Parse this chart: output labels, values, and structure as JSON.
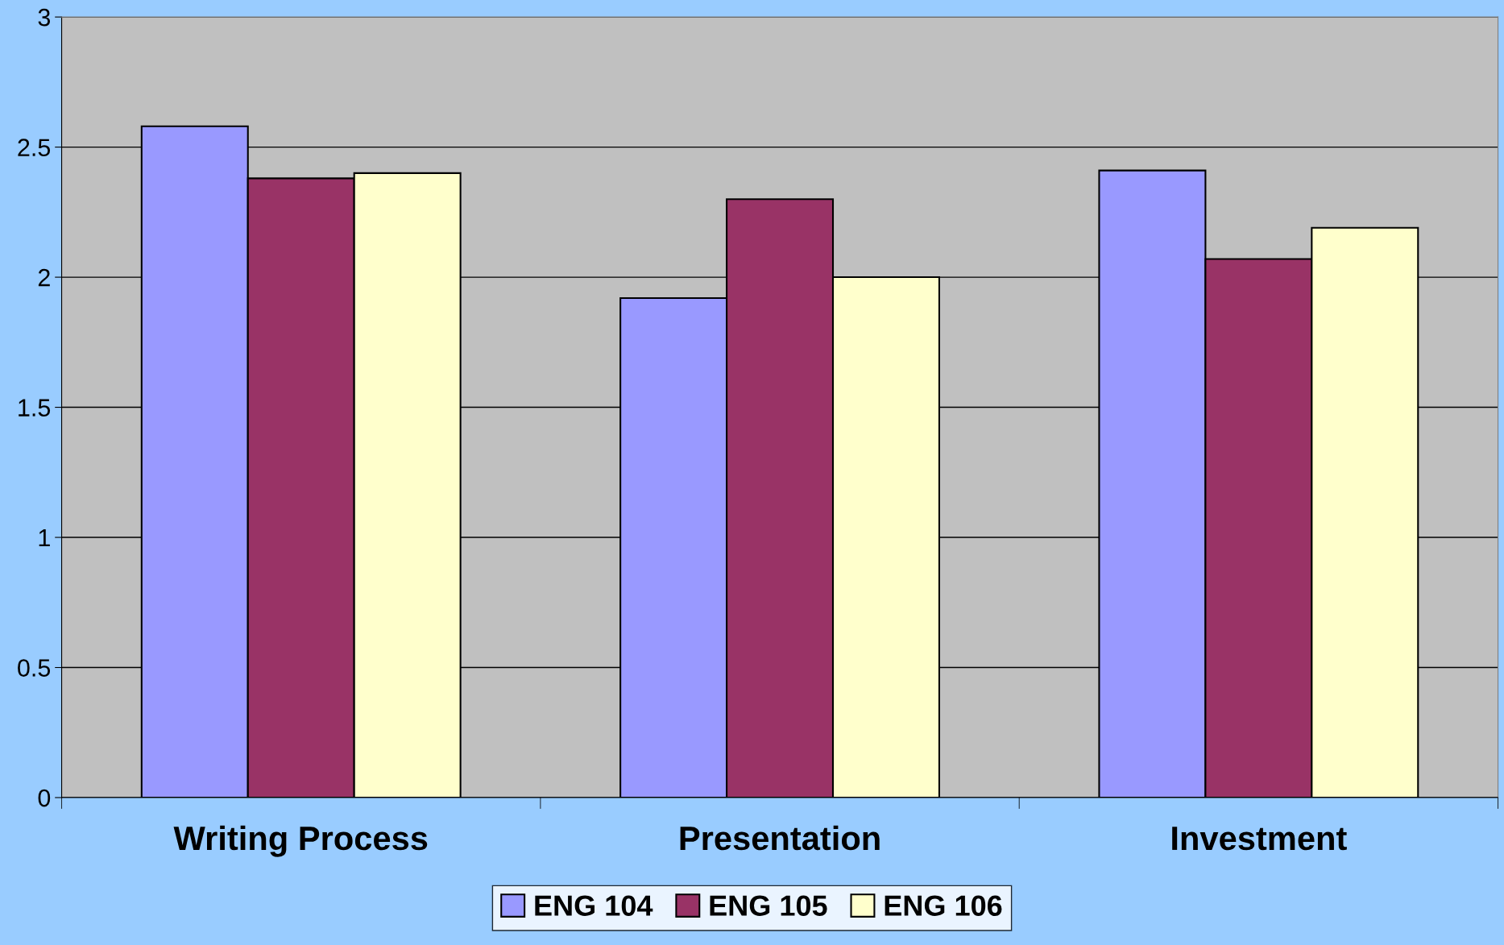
{
  "chart_data": {
    "type": "bar",
    "categories": [
      "Writing Process",
      "Presentation",
      "Investment"
    ],
    "series": [
      {
        "name": "ENG 104",
        "color": "#9999ff",
        "values": [
          2.58,
          1.92,
          2.41
        ]
      },
      {
        "name": "ENG 105",
        "color": "#993366",
        "values": [
          2.38,
          2.3,
          2.07
        ]
      },
      {
        "name": "ENG 106",
        "color": "#ffffcc",
        "values": [
          2.4,
          2.0,
          2.19
        ]
      }
    ],
    "ylim": [
      0,
      3
    ],
    "yticks": [
      0,
      0.5,
      1,
      1.5,
      2,
      2.5,
      3
    ],
    "grid": "y",
    "legend": "bottom"
  }
}
